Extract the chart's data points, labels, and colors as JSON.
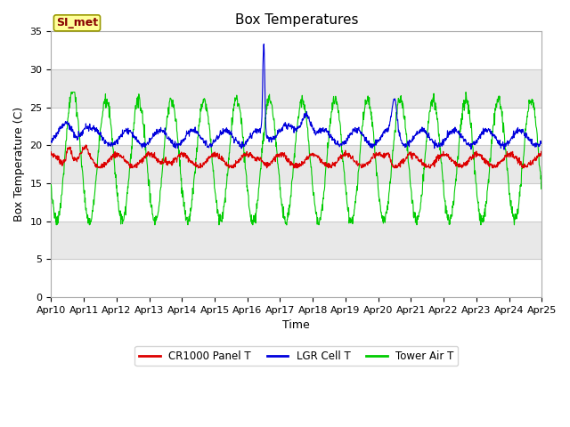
{
  "title": "Box Temperatures",
  "xlabel": "Time",
  "ylabel": "Box Temperature (C)",
  "ylim": [
    0,
    35
  ],
  "yticks": [
    0,
    5,
    10,
    15,
    20,
    25,
    30,
    35
  ],
  "x_tick_labels": [
    "Apr 10",
    "Apr 11",
    "Apr 12",
    "Apr 13",
    "Apr 14",
    "Apr 15",
    "Apr 16",
    "Apr 17",
    "Apr 18",
    "Apr 19",
    "Apr 20",
    "Apr 21",
    "Apr 22",
    "Apr 23",
    "Apr 24",
    "Apr 25"
  ],
  "line_colors": {
    "red": "#dd0000",
    "blue": "#0000dd",
    "green": "#00cc00"
  },
  "legend_labels": [
    "CR1000 Panel T",
    "LGR Cell T",
    "Tower Air T"
  ],
  "annotation_text": "SI_met",
  "annotation_box_color": "#ffff99",
  "annotation_border_color": "#999900",
  "plot_bg_color": "#e8e8e8",
  "fig_bg_color": "#ffffff",
  "title_fontsize": 11,
  "axis_label_fontsize": 9,
  "tick_label_fontsize": 8
}
